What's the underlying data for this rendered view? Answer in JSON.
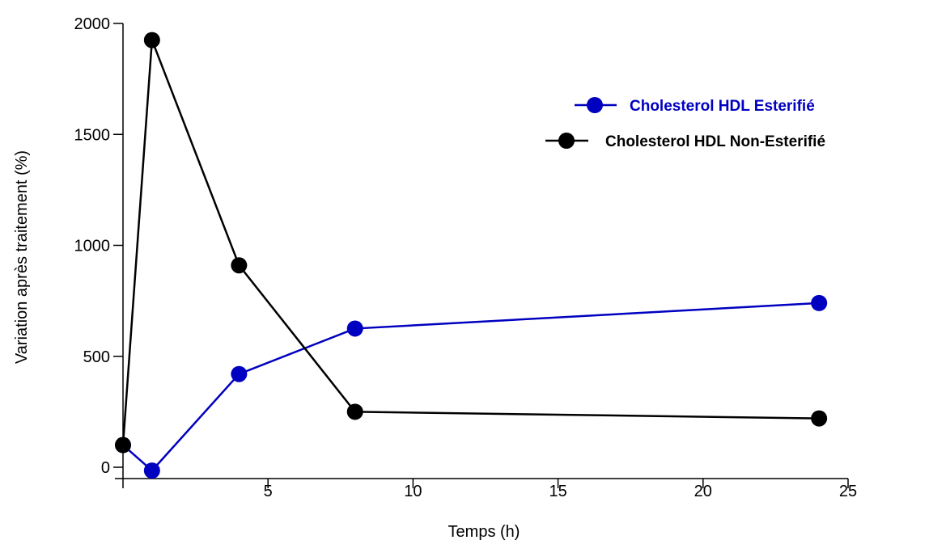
{
  "chart_data": {
    "type": "line",
    "title": "",
    "xlabel": "Temps (h)",
    "ylabel": "Variation après traitement (%)",
    "xlim": [
      0,
      25
    ],
    "ylim": [
      0,
      2000
    ],
    "x_ticks": [
      5,
      10,
      15,
      20,
      25
    ],
    "x_tick_labels": [
      "5",
      "10",
      "15",
      "20",
      "25"
    ],
    "y_ticks": [
      0,
      500,
      1000,
      1500,
      2000
    ],
    "y_tick_labels": [
      "0",
      "500",
      "1000",
      "1500",
      "2000"
    ],
    "grid": false,
    "legend_position": "top-right",
    "series": [
      {
        "name": "Cholesterol HDL Esterifié",
        "color": "#0000c0",
        "x": [
          0,
          1,
          4,
          8,
          24
        ],
        "y": [
          100,
          -15,
          420,
          625,
          740
        ]
      },
      {
        "name": "Cholesterol HDL Non-Esterifié",
        "color": "#000000",
        "x": [
          0,
          1,
          4,
          8,
          24
        ],
        "y": [
          100,
          1925,
          910,
          250,
          220
        ]
      }
    ]
  }
}
